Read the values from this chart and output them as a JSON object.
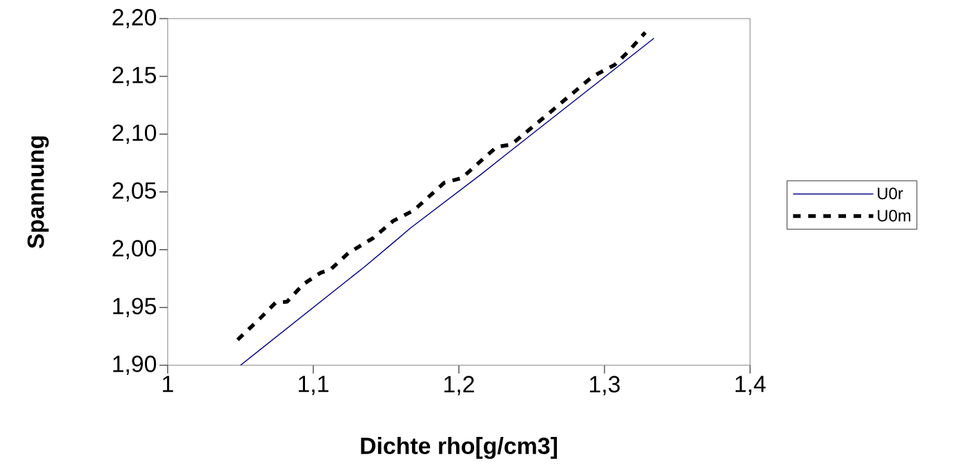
{
  "chart_data": {
    "type": "line",
    "xlabel": "Dichte rho[g/cm3]",
    "ylabel": "Spannung",
    "xlim": [
      1,
      1.4
    ],
    "ylim": [
      1.9,
      2.2
    ],
    "xticks": [
      1,
      {
        "value": 1.1,
        "label": "1,1"
      },
      {
        "value": 1.2,
        "label": "1,2"
      },
      {
        "value": 1.3,
        "label": "1,3"
      },
      {
        "value": 1.4,
        "label": "1,4"
      }
    ],
    "yticks": [
      {
        "value": 1.9,
        "label": "1,90"
      },
      {
        "value": 1.95,
        "label": "1,95"
      },
      {
        "value": 2.0,
        "label": "2,00"
      },
      {
        "value": 2.05,
        "label": "2,05"
      },
      {
        "value": 2.1,
        "label": "2,10"
      },
      {
        "value": 2.15,
        "label": "2,15"
      },
      {
        "value": 2.2,
        "label": "2,20"
      }
    ],
    "legend": "right",
    "grid": false,
    "series": [
      {
        "name": "U0r",
        "color": "#000080",
        "line_style": "solid",
        "x": [
          1.05,
          1.135,
          1.153,
          1.167,
          1.215,
          1.231,
          1.334
        ],
        "values": [
          1.9,
          1.985,
          2.004,
          2.019,
          2.065,
          2.081,
          2.183
        ]
      },
      {
        "name": "U0m",
        "color": "#000000",
        "line_style": "dashed",
        "x": [
          1.048,
          1.063,
          1.074,
          1.082,
          1.093,
          1.105,
          1.112,
          1.124,
          1.141,
          1.155,
          1.169,
          1.19,
          1.202,
          1.217,
          1.226,
          1.236,
          1.259,
          1.273,
          1.292,
          1.307,
          1.316,
          1.328
        ],
        "values": [
          1.922,
          1.94,
          1.954,
          1.955,
          1.97,
          1.98,
          1.983,
          1.997,
          2.01,
          2.025,
          2.034,
          2.058,
          2.062,
          2.079,
          2.089,
          2.091,
          2.115,
          2.13,
          2.15,
          2.16,
          2.171,
          2.188
        ]
      }
    ]
  }
}
